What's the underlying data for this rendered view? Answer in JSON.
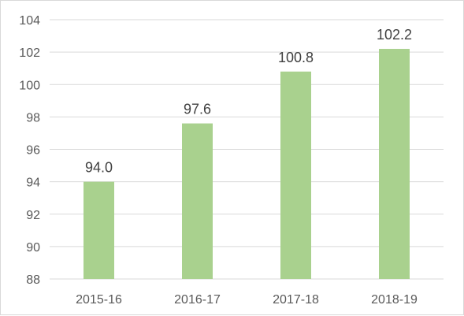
{
  "chart_data": {
    "type": "bar",
    "categories": [
      "2015-16",
      "2016-17",
      "2017-18",
      "2018-19"
    ],
    "values": [
      94.0,
      97.6,
      100.8,
      102.2
    ],
    "data_labels": [
      "94.0",
      "97.6",
      "100.8",
      "102.2"
    ],
    "title": "",
    "xlabel": "",
    "ylabel": "",
    "ylim": [
      88,
      104
    ],
    "yticks": [
      88,
      90,
      92,
      94,
      96,
      98,
      100,
      102,
      104
    ],
    "grid": true,
    "legend": "none",
    "bar_color": "#a9d18e",
    "grid_color": "#d9d9d9"
  }
}
